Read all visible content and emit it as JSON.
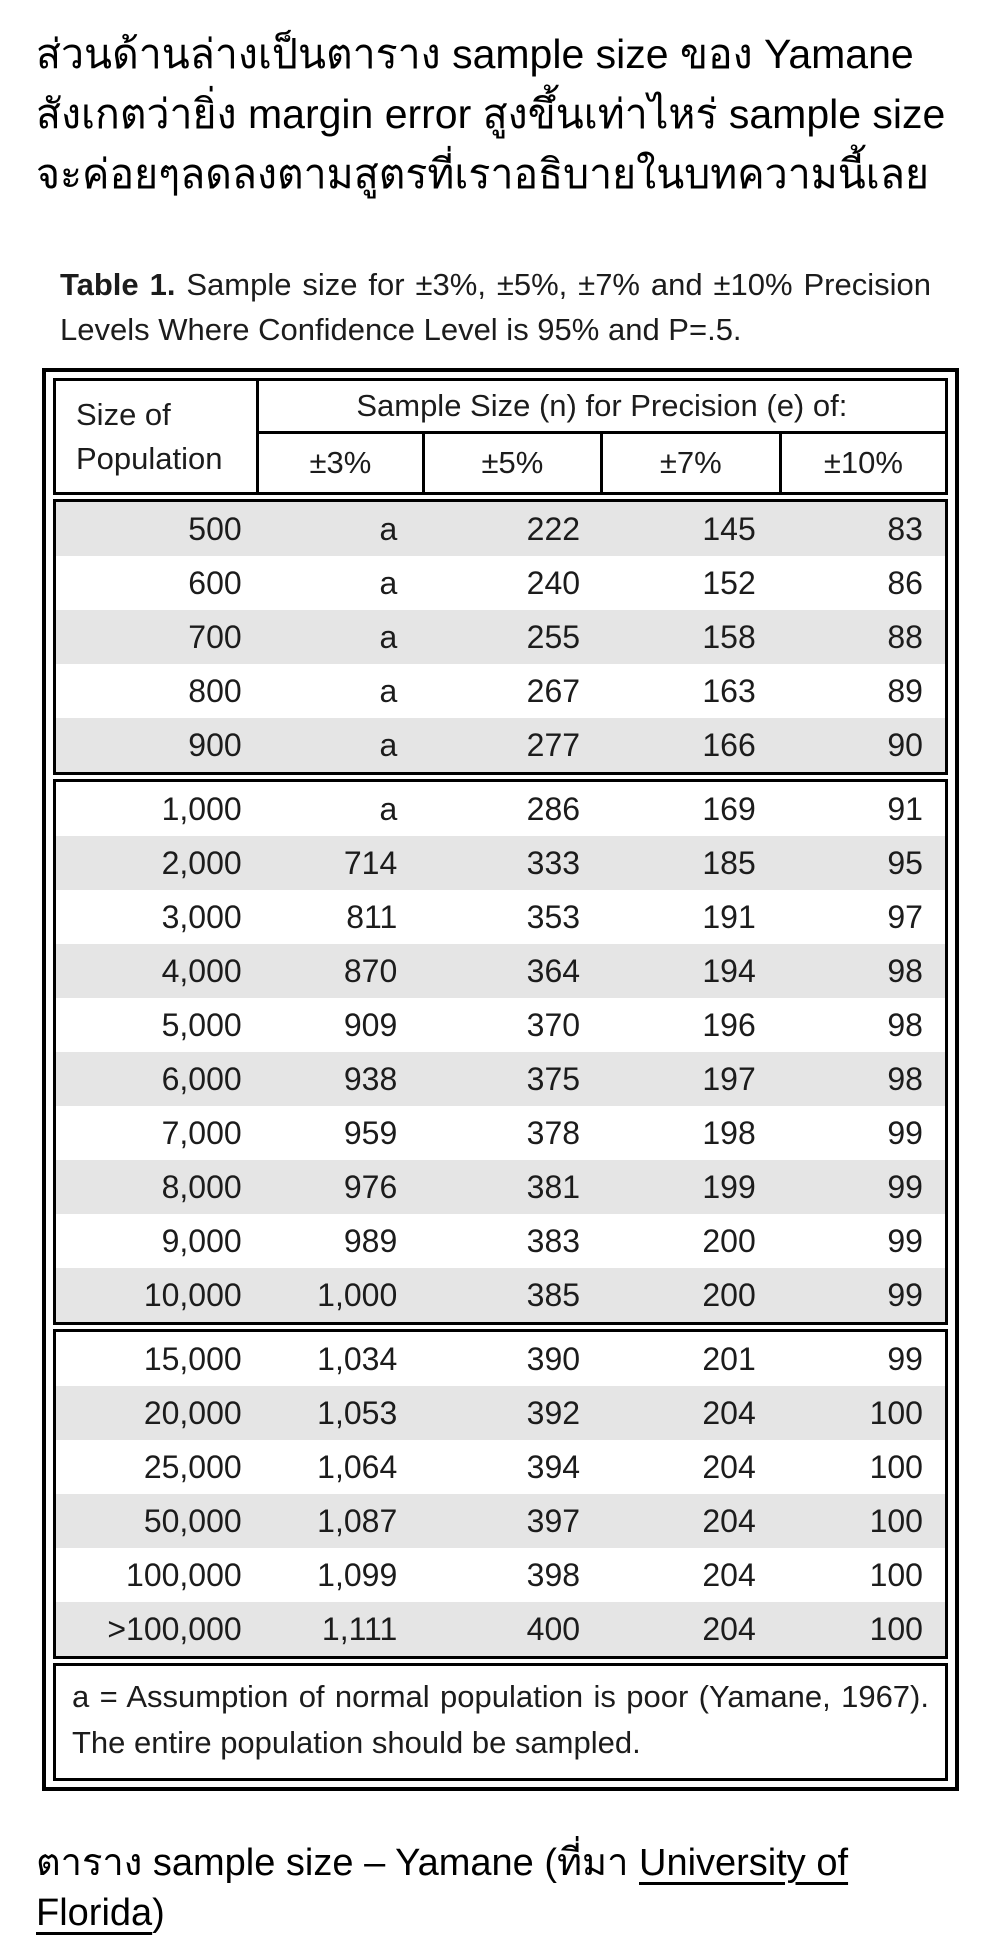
{
  "intro": {
    "lines": [
      "ส่วนด้านล่างเป็นตาราง sample size ของ Yamane",
      "สังเกตว่ายิ่ง margin error สูงขึ้นเท่าไหร่ sample size",
      "จะค่อยๆลดลงตามสูตรที่เราอธิบายในบทความนี้เลย"
    ]
  },
  "table_caption": {
    "label": "Table 1.",
    "text": "Sample size for ±3%, ±5%, ±7% and ±10% Precision Levels Where Confidence Level is 95% and P=.5."
  },
  "table": {
    "header": {
      "population": "Size of Population",
      "group": "Sample Size (n) for Precision (e) of:",
      "precision_cols": [
        "±3%",
        "±5%",
        "±7%",
        "±10%"
      ]
    },
    "groups": [
      [
        [
          "500",
          "a",
          "222",
          "145",
          "83"
        ],
        [
          "600",
          "a",
          "240",
          "152",
          "86"
        ],
        [
          "700",
          "a",
          "255",
          "158",
          "88"
        ],
        [
          "800",
          "a",
          "267",
          "163",
          "89"
        ],
        [
          "900",
          "a",
          "277",
          "166",
          "90"
        ]
      ],
      [
        [
          "1,000",
          "a",
          "286",
          "169",
          "91"
        ],
        [
          "2,000",
          "714",
          "333",
          "185",
          "95"
        ],
        [
          "3,000",
          "811",
          "353",
          "191",
          "97"
        ],
        [
          "4,000",
          "870",
          "364",
          "194",
          "98"
        ],
        [
          "5,000",
          "909",
          "370",
          "196",
          "98"
        ],
        [
          "6,000",
          "938",
          "375",
          "197",
          "98"
        ],
        [
          "7,000",
          "959",
          "378",
          "198",
          "99"
        ],
        [
          "8,000",
          "976",
          "381",
          "199",
          "99"
        ],
        [
          "9,000",
          "989",
          "383",
          "200",
          "99"
        ],
        [
          "10,000",
          "1,000",
          "385",
          "200",
          "99"
        ]
      ],
      [
        [
          "15,000",
          "1,034",
          "390",
          "201",
          "99"
        ],
        [
          "20,000",
          "1,053",
          "392",
          "204",
          "100"
        ],
        [
          "25,000",
          "1,064",
          "394",
          "204",
          "100"
        ],
        [
          "50,000",
          "1,087",
          "397",
          "204",
          "100"
        ],
        [
          "100,000",
          "1,099",
          "398",
          "204",
          "100"
        ],
        [
          ">100,000",
          "1,111",
          "400",
          "204",
          "100"
        ]
      ]
    ],
    "footnote": "a = Assumption of normal population is poor (Yamane, 1967).  The entire population should be sampled.",
    "colors": {
      "row_shade": "#e5e5e5",
      "border": "#000000"
    }
  },
  "fig_caption": {
    "prefix": "ตาราง sample size – Yamane (ที่มา ",
    "link": "University of Florida",
    "suffix": ")"
  }
}
